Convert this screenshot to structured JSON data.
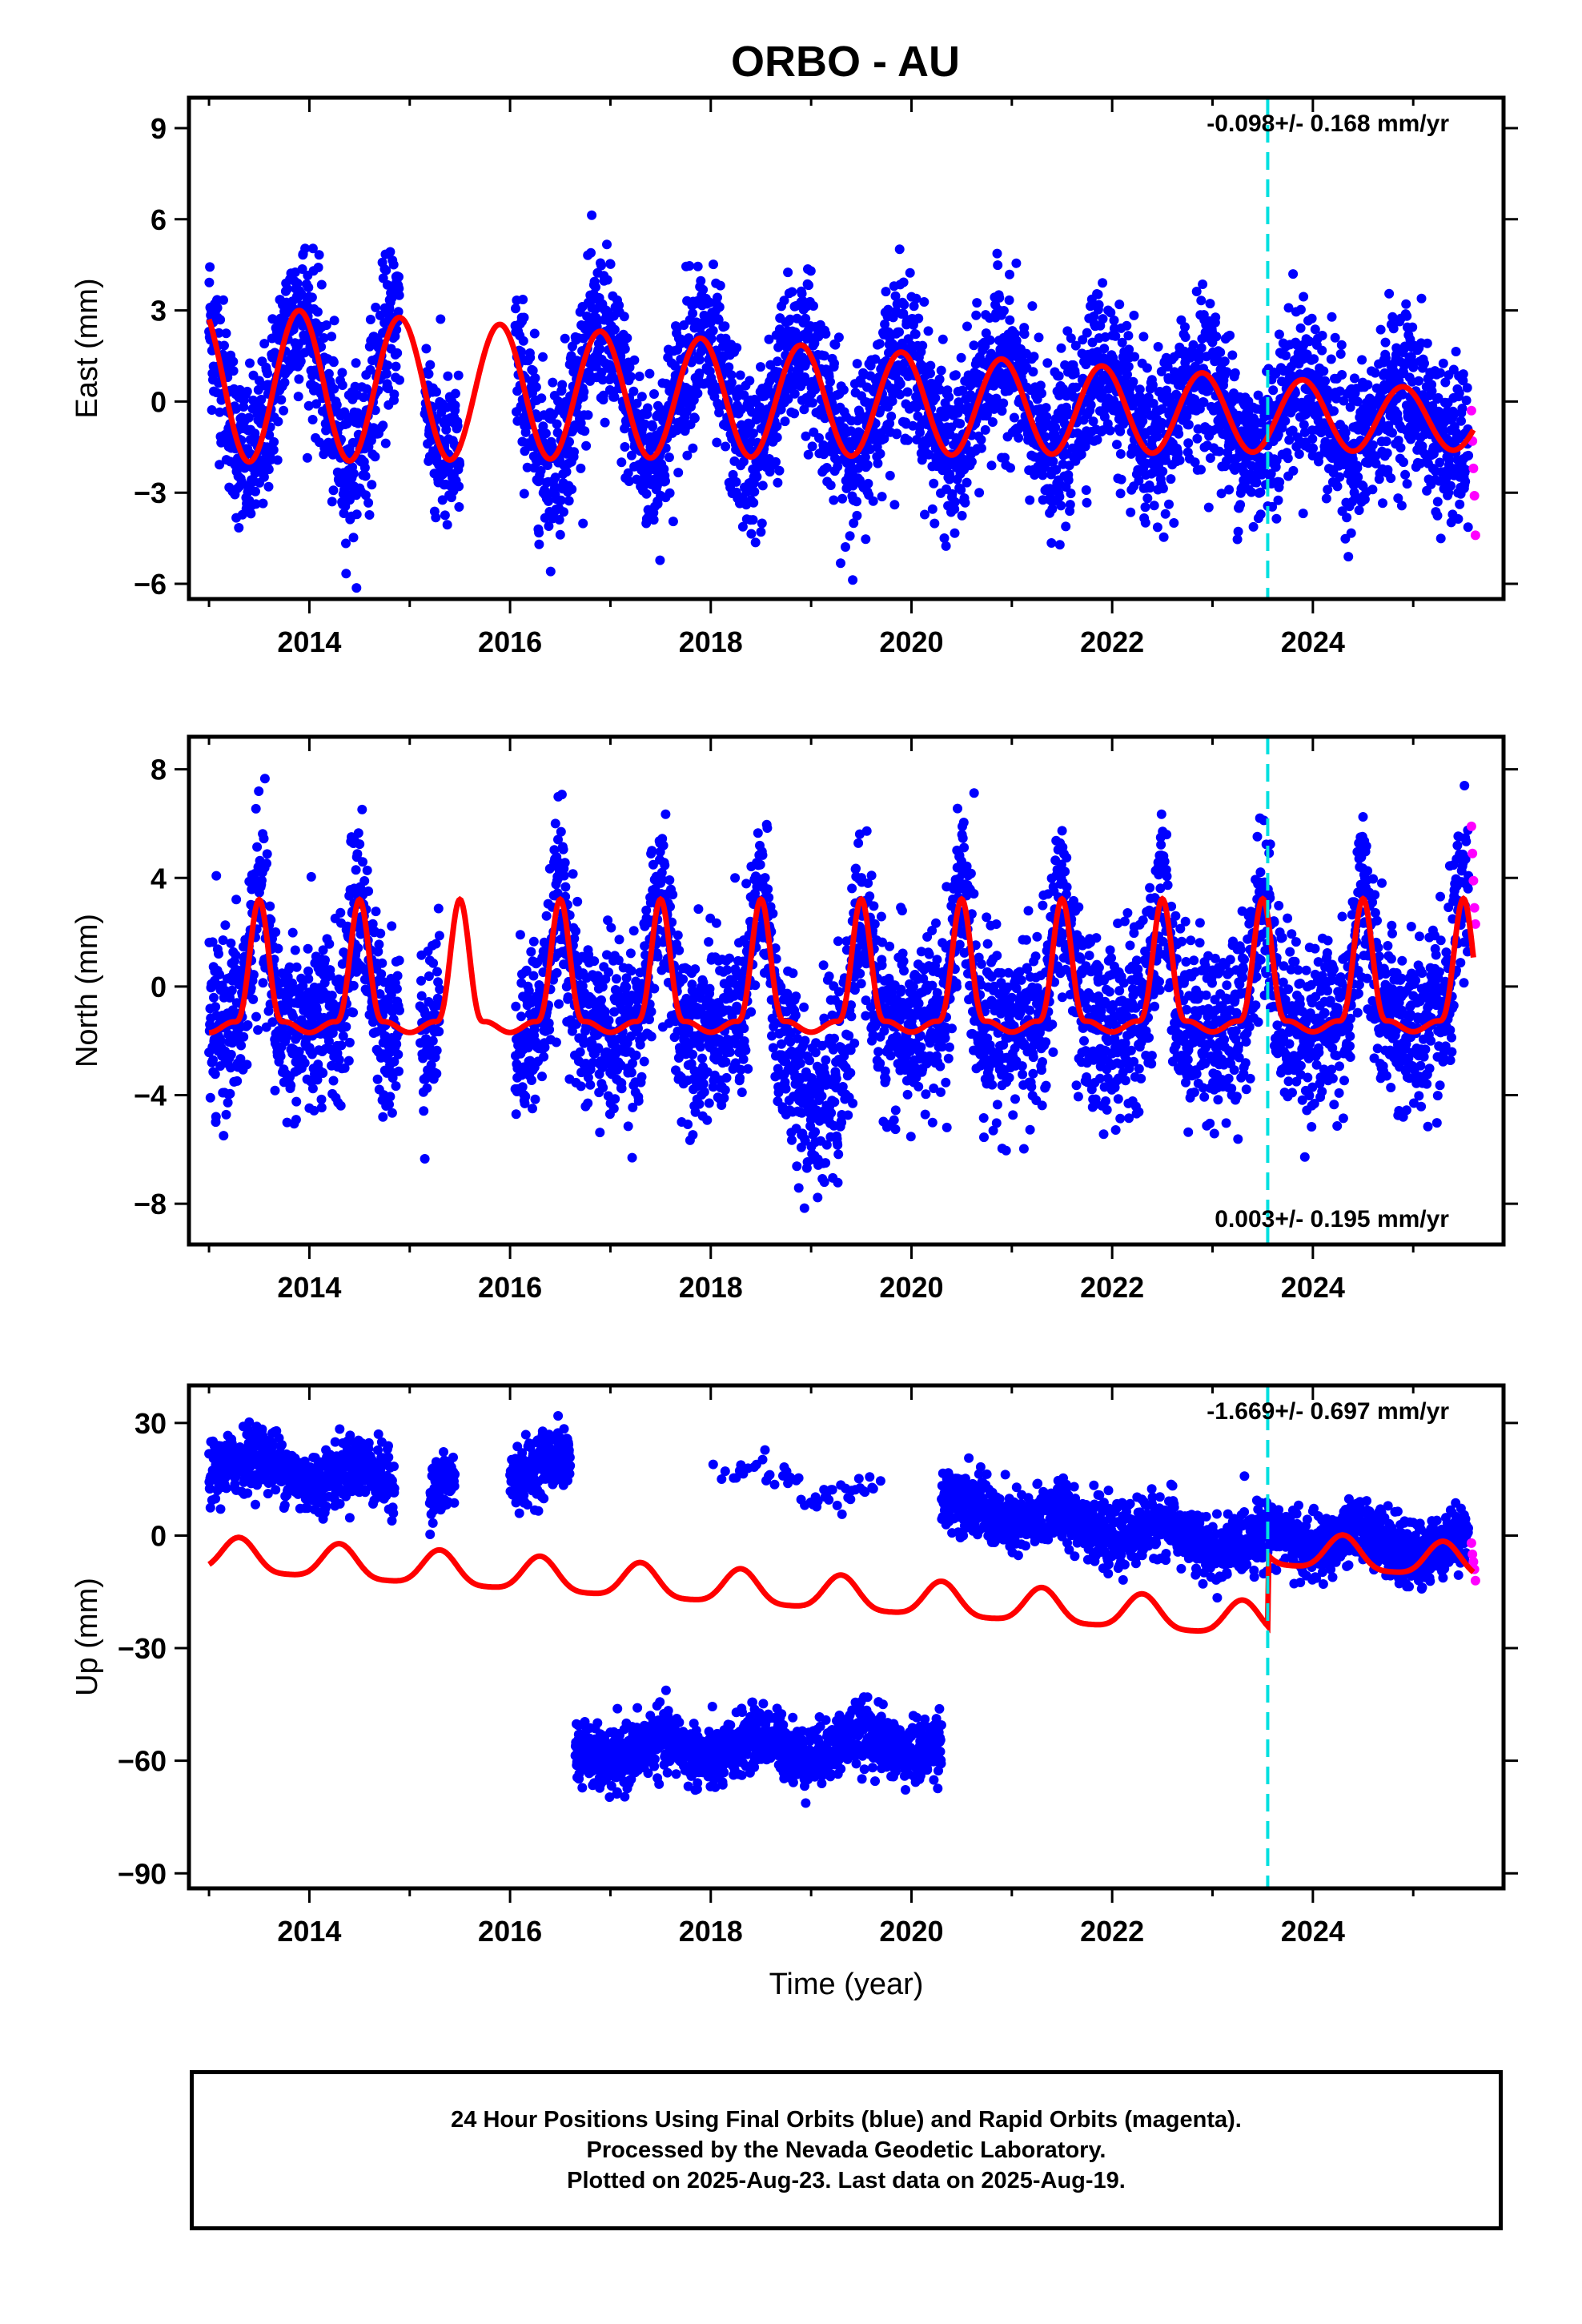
{
  "chart_title": "ORBO - AU",
  "footer": {
    "line1": "24 Hour Positions Using Final Orbits (blue) and Rapid Orbits (magenta).",
    "line2": "Processed by the Nevada Geodetic Laboratory.",
    "line3": "Plotted on 2025-Aug-23. Last data on 2025-Aug-19."
  },
  "colors": {
    "final_orbits": "#0000ff",
    "rapid_orbits": "#ff00ff",
    "model_fit": "#ff0000",
    "equipment_change": "#00e0e0"
  },
  "chart_data": [
    {
      "type": "scatter",
      "title": "ORBO - AU",
      "ylabel": "East (mm)",
      "xlabel": "",
      "xlim": [
        2012.8,
        2025.9
      ],
      "ylim": [
        -6.5,
        10
      ],
      "xticks": [
        2014,
        2016,
        2018,
        2020,
        2022,
        2024
      ],
      "yticks": [
        -6,
        -3,
        0,
        3,
        6,
        9
      ],
      "ytick_labels": [
        "−6",
        "−3",
        "0",
        "3",
        "6",
        "9"
      ],
      "annotation": "-0.098+/- 0.168 mm/yr",
      "annotation_position": "top-right",
      "equipment_change_x": 2023.55,
      "gaps": [
        [
          2014.9,
          2015.15
        ],
        [
          2015.5,
          2016.05
        ]
      ],
      "series": [
        {
          "role": "final_orbits",
          "x_range": [
            2013.0,
            2025.55
          ],
          "model": {
            "offset": 0.6,
            "amplitude": 2.6,
            "phase_peak": 2013.9,
            "trend": -0.098,
            "annual_decay": 0.05
          },
          "noise": 1.3
        },
        {
          "role": "rapid_orbits",
          "x": [
            2025.58,
            2025.59,
            2025.6,
            2025.61,
            2025.62
          ],
          "y": [
            -0.3,
            -1.3,
            -2.2,
            -3.1,
            -4.4
          ]
        },
        {
          "role": "model_fit",
          "type": "line"
        }
      ]
    },
    {
      "type": "scatter",
      "ylabel": "North (mm)",
      "xlabel": "",
      "xlim": [
        2012.8,
        2025.9
      ],
      "ylim": [
        -9.5,
        9.2
      ],
      "xticks": [
        2014,
        2016,
        2018,
        2020,
        2022,
        2024
      ],
      "yticks": [
        -8,
        -4,
        0,
        4,
        8
      ],
      "ytick_labels": [
        "−8",
        "−4",
        "0",
        "4",
        "8"
      ],
      "annotation": "0.003+/- 0.195 mm/yr",
      "annotation_position": "bottom-right",
      "equipment_change_x": 2023.55,
      "gaps": [
        [
          2014.9,
          2015.1
        ],
        [
          2015.3,
          2016.05
        ]
      ],
      "series": [
        {
          "role": "final_orbits",
          "x_range": [
            2013.0,
            2025.55
          ],
          "model": {
            "offset": -1.5,
            "amplitude": 4.9,
            "phase_peak": 2013.5,
            "trend": 0.003
          },
          "noise": 1.6
        },
        {
          "role": "rapid_orbits",
          "x": [
            2025.58,
            2025.59,
            2025.6,
            2025.61,
            2025.62
          ],
          "y": [
            5.9,
            4.9,
            3.9,
            2.9,
            2.3
          ]
        },
        {
          "role": "model_fit",
          "type": "line"
        }
      ]
    },
    {
      "type": "scatter",
      "ylabel": "Up (mm)",
      "xlabel": "Time (year)",
      "xlim": [
        2012.8,
        2025.9
      ],
      "ylim": [
        -94,
        40
      ],
      "xticks": [
        2014,
        2016,
        2018,
        2020,
        2022,
        2024
      ],
      "yticks": [
        -90,
        -60,
        -30,
        0,
        30
      ],
      "ytick_labels": [
        "−90",
        "−60",
        "−30",
        "0",
        "30"
      ],
      "annotation": "-1.669+/- 0.697 mm/yr",
      "annotation_position": "top-right",
      "equipment_change_x": 2023.55,
      "series": [
        {
          "role": "final_orbits",
          "segments": [
            {
              "x_range": [
                2013.0,
                2014.85
              ],
              "level": 20,
              "slope": -3,
              "noise": 5
            },
            {
              "x_range": [
                2015.2,
                2015.45
              ],
              "level": 12,
              "slope": 0,
              "noise": 5
            },
            {
              "x_range": [
                2016.0,
                2016.6
              ],
              "level": 18,
              "slope": 0,
              "noise": 5
            },
            {
              "x_range": [
                2016.65,
                2020.3
              ],
              "level": -58,
              "slope": 0.8,
              "noise": 5
            },
            {
              "x_range": [
                2018.0,
                2019.7
              ],
              "level": 18,
              "slope": -5,
              "noise": 3,
              "sparse": true
            },
            {
              "x_range": [
                2020.3,
                2023.55
              ],
              "level": 8,
              "slope": -3.5,
              "noise": 5
            },
            {
              "x_range": [
                2023.55,
                2025.55
              ],
              "level": 0,
              "slope": -1.669,
              "noise": 5
            }
          ]
        },
        {
          "role": "rapid_orbits",
          "x": [
            2025.58,
            2025.59,
            2025.6,
            2025.61,
            2025.62
          ],
          "y": [
            -2,
            -5,
            -7,
            -9,
            -12
          ]
        },
        {
          "role": "model_fit",
          "type": "line",
          "model": {
            "offset": -1,
            "amplitude": 4.5,
            "trend": -1.669,
            "semiannual": 2.0,
            "offset_step": 19,
            "step_x": 2023.55
          }
        }
      ]
    }
  ]
}
